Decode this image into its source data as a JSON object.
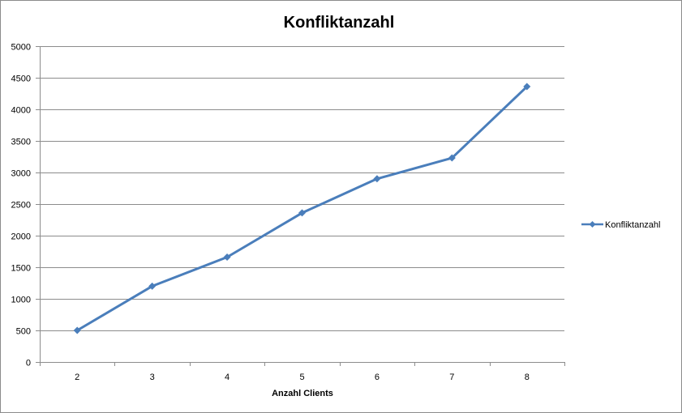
{
  "chart_data": {
    "type": "line",
    "title": "Konfliktanzahl",
    "xlabel": "Anzahl Clients",
    "ylabel": "",
    "categories": [
      "2",
      "3",
      "4",
      "5",
      "6",
      "7",
      "8"
    ],
    "series": [
      {
        "name": "Konfliktanzahl",
        "color": "#4a7ebb",
        "marker": "diamond",
        "values": [
          500,
          1200,
          1660,
          2360,
          2900,
          3230,
          4360
        ]
      }
    ],
    "ylim": [
      0,
      5000
    ],
    "yticks": [
      0,
      500,
      1000,
      1500,
      2000,
      2500,
      3000,
      3500,
      4000,
      4500,
      5000
    ],
    "grid": true,
    "legend_position": "right",
    "colors": {
      "gridline": "#8c8c8c",
      "axis": "#8c8c8c",
      "frame": "#8c8c8c"
    }
  }
}
